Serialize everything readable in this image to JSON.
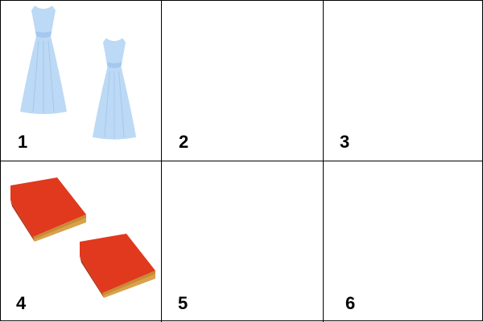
{
  "cells": [
    {
      "number": "1",
      "picture": "two-light-blue-dresses",
      "count": 2
    },
    {
      "number": "2",
      "picture": "empty"
    },
    {
      "number": "3",
      "picture": "empty"
    },
    {
      "number": "4",
      "picture": "two-red-books",
      "count": 2
    },
    {
      "number": "5",
      "picture": "empty"
    },
    {
      "number": "6",
      "picture": "empty"
    }
  ],
  "colors": {
    "dress": "#bcd9f5",
    "dress_shade": "#a6c8ee",
    "book_cover": "#e0391e",
    "book_pages": "#d9a24a"
  }
}
